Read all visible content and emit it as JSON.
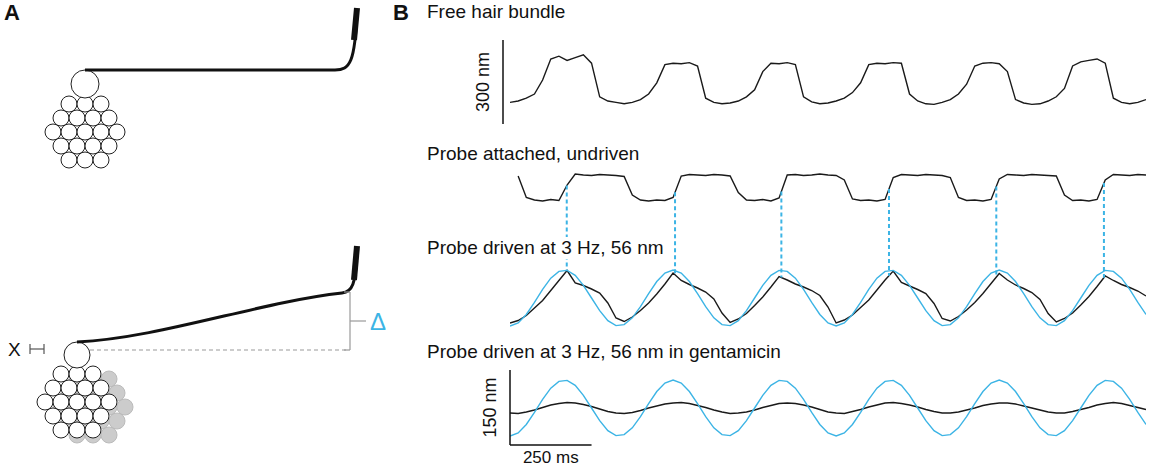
{
  "panel_labels": [
    "A",
    "B"
  ],
  "diagram": {
    "labels": [
      "X",
      "Δ"
    ],
    "delta_color": "#3cb4e5"
  },
  "scale_bars": {
    "top_y": {
      "value": 300,
      "label": "300 nm"
    },
    "bottom_y": {
      "value": 150,
      "label": "150 nm"
    },
    "bottom_x": {
      "value": 250,
      "label": "250 ms"
    }
  },
  "annotations": {
    "x": [
      174,
      506,
      832,
      1162,
      1491,
      1821
    ],
    "color": "#3cb4e5",
    "line_style": "dashed"
  },
  "chart_data": [
    {
      "type": "line",
      "title": "Free hair bundle",
      "tick_labels": false,
      "xlim": [
        0,
        1950
      ],
      "ylim": [
        -10,
        190
      ],
      "x": [
        0,
        25,
        50,
        75,
        100,
        125,
        150,
        175,
        200,
        225,
        250,
        275,
        300,
        325,
        350,
        375,
        400,
        425,
        450,
        475,
        500,
        525,
        550,
        575,
        600,
        625,
        650,
        675,
        700,
        725,
        750,
        775,
        800,
        825,
        850,
        875,
        900,
        925,
        950,
        975,
        1000,
        1025,
        1050,
        1075,
        1100,
        1125,
        1150,
        1175,
        1200,
        1225,
        1250,
        1275,
        1300,
        1325,
        1350,
        1375,
        1400,
        1425,
        1450,
        1475,
        1500,
        1525,
        1550,
        1575,
        1600,
        1625,
        1650,
        1675,
        1700,
        1725,
        1750,
        1775,
        1800,
        1825,
        1850,
        1875,
        1900,
        1925,
        1950
      ],
      "series": [
        {
          "color": "#1a1a1a",
          "values": [
            10,
            15,
            25,
            40,
            90,
            165,
            175,
            160,
            170,
            180,
            150,
            30,
            15,
            10,
            5,
            10,
            20,
            40,
            80,
            145,
            150,
            148,
            152,
            140,
            25,
            10,
            5,
            8,
            15,
            30,
            55,
            120,
            150,
            148,
            152,
            145,
            30,
            12,
            5,
            8,
            15,
            25,
            45,
            80,
            145,
            150,
            148,
            152,
            150,
            40,
            15,
            5,
            3,
            10,
            20,
            40,
            75,
            140,
            150,
            152,
            148,
            120,
            20,
            8,
            3,
            5,
            15,
            30,
            60,
            140,
            155,
            160,
            165,
            150,
            25,
            10,
            5,
            10,
            20
          ]
        }
      ]
    },
    {
      "type": "line",
      "title": "Probe attached, undriven",
      "tick_labels": false,
      "xlim": [
        0,
        1950
      ],
      "ylim": [
        -60,
        10
      ],
      "x": [
        0,
        25,
        50,
        75,
        100,
        125,
        150,
        175,
        200,
        225,
        250,
        275,
        300,
        325,
        350,
        375,
        400,
        425,
        450,
        475,
        500,
        525,
        550,
        575,
        600,
        625,
        650,
        675,
        700,
        725,
        750,
        775,
        800,
        825,
        850,
        875,
        900,
        925,
        950,
        975,
        1000,
        1025,
        1050,
        1075,
        1100,
        1125,
        1150,
        1175,
        1200,
        1225,
        1250,
        1275,
        1300,
        1325,
        1350,
        1375,
        1400,
        1425,
        1450,
        1475,
        1500,
        1525,
        1550,
        1575,
        1600,
        1625,
        1650,
        1675,
        1700,
        1725,
        1750,
        1775,
        1800,
        1825,
        1850,
        1875,
        1900,
        1925,
        1950
      ],
      "series": [
        {
          "color": "#1a1a1a",
          "values": [
            null,
            -2,
            -45,
            -50,
            -52,
            -49,
            -51,
            -20,
            2,
            0,
            -1,
            1,
            0,
            -1,
            -3,
            -40,
            -50,
            -52,
            -50,
            -51,
            -45,
            -2,
            1,
            0,
            -1,
            1,
            0,
            -2,
            -35,
            -50,
            -51,
            -49,
            -52,
            -46,
            0,
            1,
            -1,
            0,
            2,
            0,
            -1,
            -10,
            -48,
            -51,
            -50,
            -52,
            -49,
            -5,
            1,
            0,
            -1,
            1,
            0,
            -1,
            -5,
            -45,
            -51,
            -50,
            -52,
            -49,
            -8,
            1,
            0,
            -1,
            1,
            0,
            -1,
            -2,
            -40,
            -51,
            -50,
            -52,
            -49,
            -10,
            1,
            0,
            -1,
            1,
            0
          ]
        }
      ]
    },
    {
      "type": "line",
      "title": "Probe driven at 3 Hz, 56 nm",
      "tick_labels": false,
      "xlim": [
        0,
        1950
      ],
      "ylim": [
        -60,
        60
      ],
      "x": [
        0,
        25,
        50,
        75,
        100,
        125,
        150,
        175,
        200,
        225,
        250,
        275,
        300,
        325,
        350,
        375,
        400,
        425,
        450,
        475,
        500,
        525,
        550,
        575,
        600,
        625,
        650,
        675,
        700,
        725,
        750,
        775,
        800,
        825,
        850,
        875,
        900,
        925,
        950,
        975,
        1000,
        1025,
        1050,
        1075,
        1100,
        1125,
        1150,
        1175,
        1200,
        1225,
        1250,
        1275,
        1300,
        1325,
        1350,
        1375,
        1400,
        1425,
        1450,
        1475,
        1500,
        1525,
        1550,
        1575,
        1600,
        1625,
        1650,
        1675,
        1700,
        1725,
        1750,
        1775,
        1800,
        1825,
        1850,
        1875,
        1900,
        1925,
        1950
      ],
      "series": [
        {
          "color": "#1a1a1a",
          "values": [
            -50,
            -45,
            -35,
            -20,
            -5,
            15,
            35,
            55,
            30,
            25,
            18,
            10,
            -10,
            -40,
            -47,
            -38,
            -25,
            -10,
            8,
            28,
            50,
            35,
            27,
            20,
            12,
            -2,
            -30,
            -49,
            -42,
            -31,
            -15,
            2,
            22,
            43,
            36,
            28,
            22,
            15,
            5,
            -18,
            -50,
            -44,
            -34,
            -19,
            -4,
            16,
            36,
            54,
            31,
            24,
            17,
            9,
            -11,
            -41,
            -46,
            -37,
            -24,
            -9,
            9,
            29,
            49,
            36,
            26,
            19,
            11,
            -3,
            -31,
            -48,
            -41,
            -30,
            -14,
            3,
            23,
            44,
            35,
            27,
            21,
            14,
            4
          ]
        },
        {
          "color": "#3cb4e5",
          "values": [
            -56,
            -49.9,
            -32.9,
            -8.8,
            17.3,
            39.6,
            53.3,
            55.3,
            45.3,
            25.4,
            0,
            -25.4,
            -45.3,
            -55.3,
            -53.3,
            -39.6,
            -17.3,
            8.8,
            32.9,
            49.9,
            56,
            49.9,
            32.9,
            8.8,
            -17.3,
            -39.6,
            -53.3,
            -55.3,
            -45.3,
            -25.4,
            0,
            25.4,
            45.3,
            55.3,
            53.3,
            39.6,
            17.3,
            -8.8,
            -32.9,
            -49.9,
            -56,
            -49.9,
            -32.9,
            -8.8,
            17.3,
            39.6,
            53.3,
            55.3,
            45.3,
            25.4,
            0,
            -25.4,
            -45.3,
            -55.3,
            -53.3,
            -39.6,
            -17.3,
            8.8,
            32.9,
            49.9,
            56,
            49.9,
            32.9,
            8.8,
            -17.3,
            -39.6,
            -53.3,
            -55.3,
            -45.3,
            -25.4,
            0,
            25.4,
            45.3,
            55.3,
            53.3,
            39.6,
            17.3,
            -8.8,
            -32.9
          ]
        }
      ]
    },
    {
      "type": "line",
      "title": "Probe driven at 3 Hz, 56 nm in gentamicin",
      "tick_labels": false,
      "xlim": [
        0,
        1950
      ],
      "ylim": [
        -60,
        60
      ],
      "x": [
        0,
        25,
        50,
        75,
        100,
        125,
        150,
        175,
        200,
        225,
        250,
        275,
        300,
        325,
        350,
        375,
        400,
        425,
        450,
        475,
        500,
        525,
        550,
        575,
        600,
        625,
        650,
        675,
        700,
        725,
        750,
        775,
        800,
        825,
        850,
        875,
        900,
        925,
        950,
        975,
        1000,
        1025,
        1050,
        1075,
        1100,
        1125,
        1150,
        1175,
        1200,
        1225,
        1250,
        1275,
        1300,
        1325,
        1350,
        1375,
        1400,
        1425,
        1450,
        1475,
        1500,
        1525,
        1550,
        1575,
        1600,
        1625,
        1650,
        1675,
        1700,
        1725,
        1750,
        1775,
        1800,
        1825,
        1850,
        1875,
        1900,
        1925,
        1950
      ],
      "series": [
        {
          "color": "#1a1a1a",
          "values": [
            -10,
            -11,
            -8,
            -4,
            1,
            6,
            9,
            11,
            10,
            7,
            3,
            -2,
            -7,
            -10,
            -11,
            -9,
            -5,
            0,
            4,
            8,
            10,
            11,
            9,
            5,
            1,
            -4,
            -8,
            -11,
            -10,
            -8,
            -4,
            1,
            5,
            9,
            10,
            9,
            6,
            2,
            -3,
            -8,
            -10,
            -11,
            -7,
            -3,
            2,
            6,
            10,
            11,
            9,
            6,
            2,
            -3,
            -7,
            -10,
            -10,
            -8,
            -4,
            0,
            5,
            8,
            10,
            10,
            8,
            4,
            0,
            -4,
            -8,
            -10,
            -10,
            -7,
            -3,
            1,
            6,
            9,
            11,
            9,
            5,
            1,
            -3
          ]
        },
        {
          "color": "#3cb4e5",
          "values": [
            -56,
            -49.9,
            -32.9,
            -8.8,
            17.3,
            39.6,
            53.3,
            55.3,
            45.3,
            25.4,
            0,
            -25.4,
            -45.3,
            -55.3,
            -53.3,
            -39.6,
            -17.3,
            8.8,
            32.9,
            49.9,
            56,
            49.9,
            32.9,
            8.8,
            -17.3,
            -39.6,
            -53.3,
            -55.3,
            -45.3,
            -25.4,
            0,
            25.4,
            45.3,
            55.3,
            53.3,
            39.6,
            17.3,
            -8.8,
            -32.9,
            -49.9,
            -56,
            -49.9,
            -32.9,
            -8.8,
            17.3,
            39.6,
            53.3,
            55.3,
            45.3,
            25.4,
            0,
            -25.4,
            -45.3,
            -55.3,
            -53.3,
            -39.6,
            -17.3,
            8.8,
            32.9,
            49.9,
            56,
            49.9,
            32.9,
            8.8,
            -17.3,
            -39.6,
            -53.3,
            -55.3,
            -45.3,
            -25.4,
            0,
            25.4,
            45.3,
            55.3,
            53.3,
            39.6,
            17.3,
            -8.8,
            -32.9
          ]
        }
      ]
    }
  ]
}
